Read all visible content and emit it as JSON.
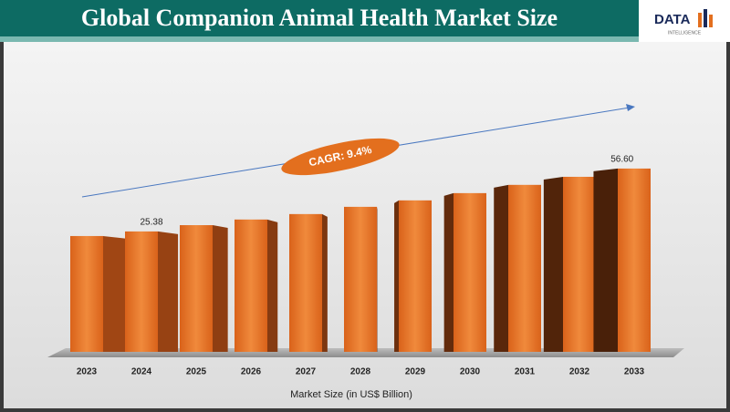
{
  "chart_data": {
    "type": "bar",
    "title": "Global Companion Animal Health Market Size",
    "logo": {
      "name": "DATA",
      "tagline": "INTELLIGENCE"
    },
    "categories": [
      "2023",
      "2024",
      "2025",
      "2026",
      "2027",
      "2028",
      "2029",
      "2030",
      "2031",
      "2032",
      "2033"
    ],
    "values": [
      23.1,
      25.38,
      28.5,
      31.3,
      34.0,
      37.6,
      40.8,
      44.4,
      48.5,
      52.5,
      56.6
    ],
    "value_labels": [
      null,
      "25.38",
      null,
      null,
      null,
      null,
      null,
      null,
      null,
      null,
      "56.60"
    ],
    "color": "#e36f1e",
    "annotation": "CAGR: 9.4%",
    "x_label": "Market Size (in US$ Billion)"
  }
}
